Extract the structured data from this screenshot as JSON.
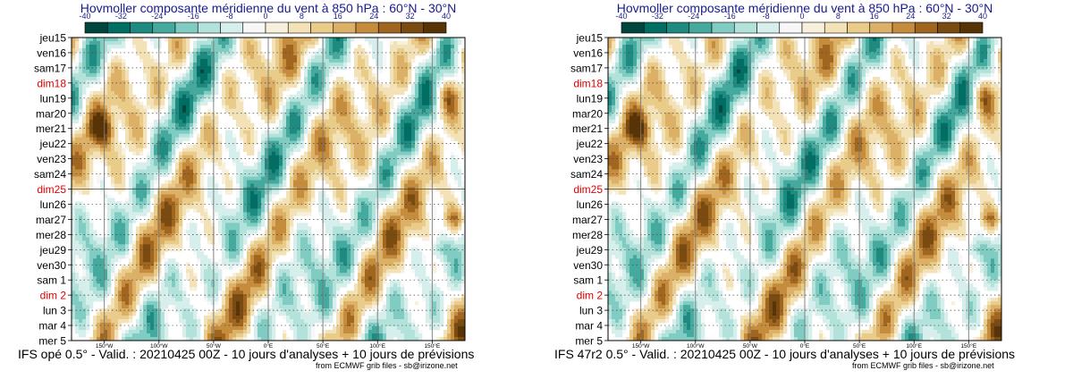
{
  "chart_data": [
    {
      "type": "heatmap",
      "title": "Hovmoller composante méridienne du vent à 850 hPa : 60°N - 30°N",
      "footer": "IFS opé 0.5° - Valid. : 20210425 00Z - 10 jours d'analyses + 10 jours de prévisions",
      "credit": "from ECMWF grib files - sb@irizone.net",
      "seed": 7
    },
    {
      "type": "heatmap",
      "title": "Hovmoller composante méridienne du vent à 850 hPa : 60°N - 30°N",
      "footer": "IFS 47r2 0.5° - Valid. : 20210425 00Z - 10 jours d'analyses + 10 jours de prévisions",
      "credit": "from ECMWF grib files - sb@irizone.net",
      "seed": 7
    }
  ],
  "shared": {
    "colorbar_ticks": [
      "-40",
      "-32",
      "-24",
      "-16",
      "-8",
      "0",
      "8",
      "16",
      "24",
      "32",
      "40"
    ],
    "colorbar_colors": [
      "#00463e",
      "#006e62",
      "#1e8a80",
      "#45a99e",
      "#80ccc3",
      "#b3e2db",
      "#d6efec",
      "#f7f7f7",
      "#f7f0dc",
      "#f3e2b8",
      "#e9cc8a",
      "#dcb066",
      "#c48c3c",
      "#a0661f",
      "#7a4b10",
      "#573306"
    ],
    "y_labels": [
      "jeu15",
      "ven16",
      "sam17",
      "dim18",
      "lun19",
      "mar20",
      "mer21",
      "jeu22",
      "ven23",
      "sam24",
      "dim25",
      "lun26",
      "mar27",
      "mer28",
      "jeu29",
      "ven30",
      "sam 1",
      "dim 2",
      "lun 3",
      "mar 4",
      "mer 5"
    ],
    "y_label_sunday": [
      false,
      false,
      false,
      true,
      false,
      false,
      false,
      false,
      false,
      false,
      true,
      false,
      false,
      false,
      false,
      false,
      false,
      true,
      false,
      false,
      false
    ],
    "y_label_color_normal": "#000000",
    "y_label_color_sunday": "#e00000",
    "x_labels": [
      "150°W",
      "100°W",
      "50°W",
      "0°E",
      "50°E",
      "100°E",
      "150°E"
    ],
    "x_range": [
      -180,
      180
    ],
    "analysis_split_label": "dim25"
  }
}
